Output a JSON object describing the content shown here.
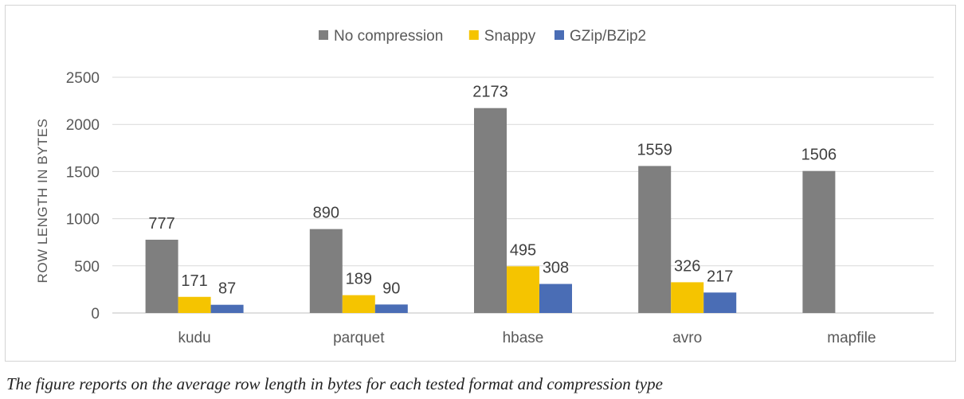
{
  "caption": "The figure reports on the average row length in bytes for each tested format and compression type",
  "chart_data": {
    "type": "bar",
    "title": "",
    "xlabel": "",
    "ylabel": "ROW LENGTH IN BYTES",
    "ylim": [
      0,
      2500
    ],
    "yticks": [
      0,
      500,
      1000,
      1500,
      2000,
      2500
    ],
    "grid": true,
    "legend_position": "top",
    "categories": [
      "kudu",
      "parquet",
      "hbase",
      "avro",
      "mapfile"
    ],
    "series": [
      {
        "name": "No compression",
        "color": "#7f7f7f",
        "values": [
          777,
          890,
          2173,
          1559,
          1506
        ]
      },
      {
        "name": "Snappy",
        "color": "#f5c400",
        "values": [
          171,
          189,
          495,
          326,
          null
        ]
      },
      {
        "name": "GZip/BZip2",
        "color": "#4a6db5",
        "values": [
          87,
          90,
          308,
          217,
          null
        ]
      }
    ]
  }
}
